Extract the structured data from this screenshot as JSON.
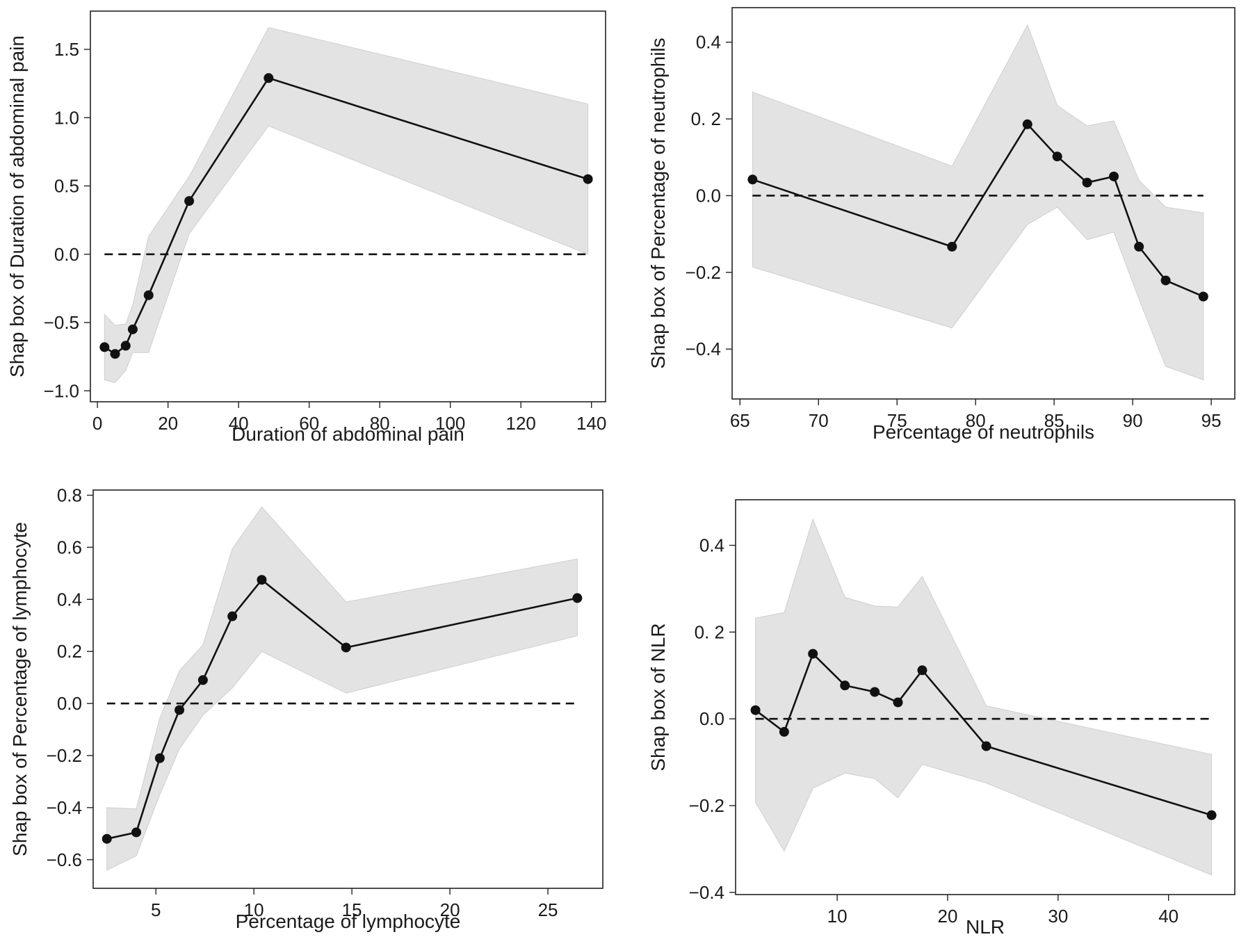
{
  "chart_data": [
    {
      "type": "line",
      "xlabel": "Duration of abdominal pain",
      "ylabel": "Shap box of Duration of abdominal pain",
      "xlim": [
        -2,
        144
      ],
      "ylim": [
        -1.08,
        1.78
      ],
      "xticks": [
        0,
        20,
        40,
        60,
        80,
        100,
        120,
        140
      ],
      "xtick_labels": [
        "0",
        "20",
        "40",
        "60",
        "80",
        "100",
        "120",
        "140"
      ],
      "yticks": [
        -1.0,
        -0.5,
        0.0,
        0.5,
        1.0,
        1.5
      ],
      "ytick_labels": [
        "−1.0",
        "−0.5",
        "0.0",
        "0.5",
        "1.0",
        "1.5"
      ],
      "reference_line": {
        "y": 0,
        "x": [
          2,
          139
        ]
      },
      "series": [
        {
          "x": [
            2,
            5,
            8,
            10,
            14.5,
            26,
            48.5,
            139
          ],
          "y": [
            -0.68,
            -0.73,
            -0.67,
            -0.55,
            -0.3,
            0.39,
            1.29,
            0.55
          ]
        }
      ],
      "band": {
        "x": [
          2,
          5,
          8,
          10,
          14.5,
          26,
          48.5,
          139
        ],
        "upper": [
          -0.44,
          -0.52,
          -0.51,
          -0.37,
          0.13,
          0.57,
          1.66,
          1.1
        ],
        "lower": [
          -0.92,
          -0.94,
          -0.85,
          -0.72,
          -0.72,
          0.15,
          0.94,
          0.0
        ]
      }
    },
    {
      "type": "line",
      "xlabel": "Percentage of neutrophils",
      "ylabel": "Shap box of Percentage of neutrophils",
      "xlim": [
        64.5,
        96.5
      ],
      "ylim": [
        -0.53,
        0.49
      ],
      "xticks": [
        65,
        70,
        75,
        80,
        85,
        90,
        95
      ],
      "xtick_labels": [
        "65",
        "70",
        "75",
        "80",
        "85",
        "90",
        "95"
      ],
      "yticks": [
        -0.4,
        -0.2,
        0.0,
        0.2,
        0.4
      ],
      "ytick_labels": [
        "−0.4",
        "−0.2",
        "0.0",
        "0. 2",
        "0.4"
      ],
      "reference_line": {
        "y": 0,
        "x": [
          65.8,
          94.5
        ]
      },
      "series": [
        {
          "x": [
            65.8,
            78.5,
            83.3,
            85.2,
            87.1,
            88.8,
            90.4,
            92.1,
            94.5
          ],
          "y": [
            0.042,
            -0.133,
            0.186,
            0.102,
            0.034,
            0.05,
            -0.133,
            -0.221,
            -0.263
          ]
        }
      ],
      "band": {
        "x": [
          65.8,
          78.5,
          83.3,
          85.2,
          87.1,
          88.8,
          90.4,
          92.1,
          94.5
        ],
        "upper": [
          0.27,
          0.077,
          0.445,
          0.235,
          0.182,
          0.195,
          0.04,
          -0.03,
          -0.045
        ],
        "lower": [
          -0.186,
          -0.345,
          -0.075,
          -0.03,
          -0.115,
          -0.095,
          -0.27,
          -0.445,
          -0.48
        ]
      }
    },
    {
      "type": "line",
      "xlabel": "Percentage of lymphocyte",
      "ylabel": "Shap box of Percentage of lymphocyte",
      "xlim": [
        1.8,
        27.8
      ],
      "ylim": [
        -0.71,
        0.82
      ],
      "xticks": [
        5,
        10,
        15,
        20,
        25
      ],
      "xtick_labels": [
        "5",
        "10",
        "15",
        "20",
        "25"
      ],
      "yticks": [
        -0.6,
        -0.4,
        -0.2,
        0.0,
        0.2,
        0.4,
        0.6,
        0.8
      ],
      "ytick_labels": [
        "−0.6",
        "−0.4",
        "−0.2",
        "0.0",
        "0.2",
        "0.4",
        "0.6",
        "0.8"
      ],
      "reference_line": {
        "y": 0,
        "x": [
          2.5,
          26.5
        ]
      },
      "series": [
        {
          "x": [
            2.5,
            4,
            5.2,
            6.2,
            7.4,
            8.9,
            10.4,
            14.7,
            26.5
          ],
          "y": [
            -0.52,
            -0.495,
            -0.21,
            -0.025,
            0.09,
            0.335,
            0.475,
            0.215,
            0.405
          ]
        }
      ],
      "band": {
        "x": [
          2.5,
          4,
          5.2,
          6.2,
          7.4,
          8.9,
          10.4,
          14.7,
          26.5
        ],
        "upper": [
          -0.4,
          -0.405,
          -0.055,
          0.125,
          0.225,
          0.595,
          0.755,
          0.39,
          0.555
        ]
      },
      "band_lower": [
        -0.64,
        -0.585,
        -0.35,
        -0.175,
        -0.045,
        0.06,
        0.2,
        0.04,
        0.26
      ]
    },
    {
      "type": "line",
      "xlabel": "NLR",
      "ylabel": "Shap box of NLR",
      "xlim": [
        0.8,
        46
      ],
      "ylim": [
        -0.405,
        0.505
      ],
      "xticks": [
        10,
        20,
        30,
        40
      ],
      "xtick_labels": [
        "10",
        "20",
        "30",
        "40"
      ],
      "yticks": [
        -0.4,
        -0.2,
        0.0,
        0.2,
        0.4
      ],
      "ytick_labels": [
        "−0.4",
        "−0.2",
        "0.0",
        "0. 2",
        "0.4"
      ],
      "reference_line": {
        "y": 0,
        "x": [
          2.6,
          43.9
        ]
      },
      "series": [
        {
          "x": [
            2.6,
            5.2,
            7.8,
            10.7,
            13.4,
            15.5,
            17.7,
            23.5,
            43.9
          ],
          "y": [
            0.02,
            -0.03,
            0.15,
            0.077,
            0.062,
            0.038,
            0.112,
            -0.063,
            -0.222
          ]
        }
      ],
      "band": {
        "x": [
          2.6,
          5.2,
          7.8,
          10.7,
          13.4,
          15.5,
          17.7,
          23.5,
          43.9
        ],
        "upper": [
          0.232,
          0.245,
          0.46,
          0.28,
          0.26,
          0.258,
          0.328,
          0.03,
          -0.082
        ],
        "lower": [
          -0.192,
          -0.305,
          -0.16,
          -0.125,
          -0.138,
          -0.182,
          -0.105,
          -0.148,
          -0.36
        ]
      }
    }
  ]
}
